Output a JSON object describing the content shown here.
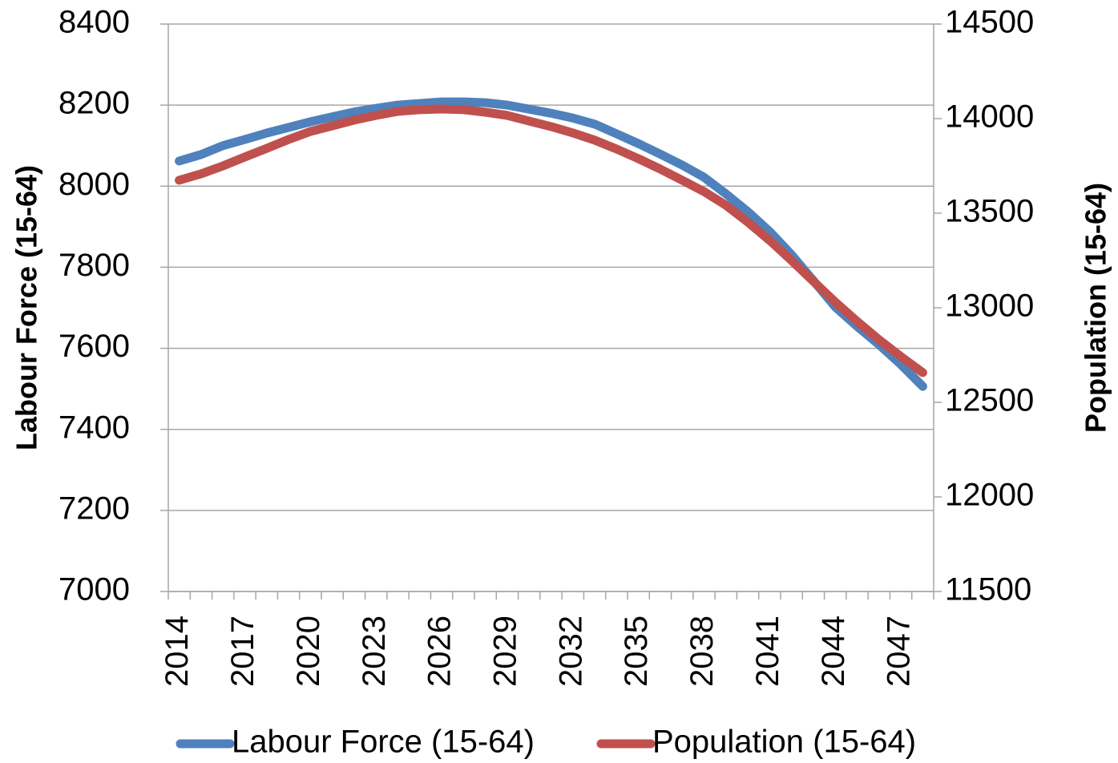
{
  "chart_data": {
    "type": "line",
    "ylabel": "Labour Force (15-64)",
    "y2label": "Population (15-64)",
    "categories": [
      "2014",
      null,
      null,
      "2017",
      null,
      null,
      "2020",
      null,
      null,
      "2023",
      null,
      null,
      "2026",
      null,
      null,
      "2029",
      null,
      null,
      "2032",
      null,
      null,
      "2035",
      null,
      null,
      "2038",
      null,
      null,
      "2041",
      null,
      null,
      "2044",
      null,
      null,
      "2047",
      null
    ],
    "series": [
      {
        "name": "Labour Force (15-64)",
        "color": "#4f81bd",
        "axis": "y",
        "values": [
          8062,
          8078,
          8100,
          8115,
          8131,
          8145,
          8159,
          8171,
          8183,
          8192,
          8200,
          8204,
          8208,
          8208,
          8206,
          8200,
          8190,
          8180,
          8168,
          8153,
          8129,
          8105,
          8079,
          8052,
          8022,
          7981,
          7937,
          7888,
          7831,
          7767,
          7702,
          7654,
          7609,
          7560,
          7506
        ]
      },
      {
        "name": "Population (15-64)",
        "color": "#c0504d",
        "axis": "y2",
        "values": [
          13674,
          13708,
          13750,
          13797,
          13843,
          13890,
          13932,
          13962,
          13992,
          14017,
          14038,
          14047,
          14051,
          14047,
          14034,
          14017,
          13987,
          13958,
          13924,
          13886,
          13839,
          13788,
          13733,
          13674,
          13614,
          13542,
          13453,
          13356,
          13250,
          13140,
          13030,
          12928,
          12831,
          12742,
          12657
        ]
      }
    ],
    "ylim": [
      7000,
      8400
    ],
    "yticks": [
      7000,
      7200,
      7400,
      7600,
      7800,
      8000,
      8200,
      8400
    ],
    "y2lim": [
      11500,
      14500
    ],
    "y2ticks": [
      11500,
      12000,
      12500,
      13000,
      13500,
      14000,
      14500
    ],
    "grid": true,
    "legend": "bottom"
  }
}
